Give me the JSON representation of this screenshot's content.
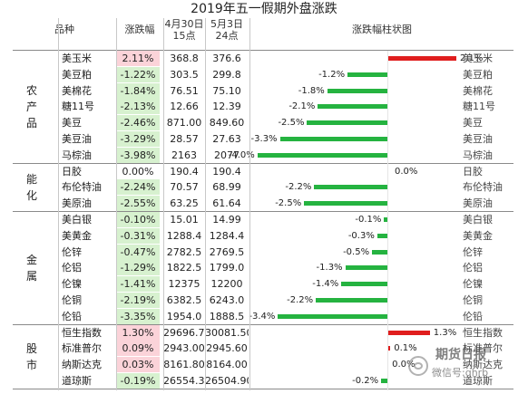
{
  "title": "2019年五一假期外盘涨跌",
  "headers": {
    "category": "品种",
    "change": "涨跌幅",
    "date1_line1": "4月30日",
    "date1_line2": "15点",
    "date2_line1": "5月3日",
    "date2_line2": "24点",
    "chart": "涨跌幅柱状图"
  },
  "groups": [
    {
      "label": "农产品",
      "count": 7
    },
    {
      "label": "能化",
      "count": 3
    },
    {
      "label": "金属",
      "count": 7
    },
    {
      "label": "股市",
      "count": 4
    }
  ],
  "rows": [
    {
      "name": "美玉米",
      "change": "2.11%",
      "v1": "368.8",
      "v2": "376.6",
      "bar_label": "2.1%",
      "value": 2.11
    },
    {
      "name": "美豆粕",
      "change": "-1.22%",
      "v1": "303.5",
      "v2": "299.8",
      "bar_label": "-1.2%",
      "value": -1.22
    },
    {
      "name": "美棉花",
      "change": "-1.84%",
      "v1": "76.51",
      "v2": "75.10",
      "bar_label": "-1.8%",
      "value": -1.84
    },
    {
      "name": "糖11号",
      "change": "-2.13%",
      "v1": "12.66",
      "v2": "12.39",
      "bar_label": "-2.1%",
      "value": -2.13
    },
    {
      "name": "美豆",
      "change": "-2.46%",
      "v1": "871.00",
      "v2": "849.60",
      "bar_label": "-2.5%",
      "value": -2.46
    },
    {
      "name": "美豆油",
      "change": "-3.29%",
      "v1": "28.57",
      "v2": "27.63",
      "bar_label": "-3.3%",
      "value": -3.29
    },
    {
      "name": "马棕油",
      "change": "-3.98%",
      "v1": "2163",
      "v2": "2077",
      "bar_label": "-4.0%",
      "value": -3.98
    },
    {
      "name": "日胶",
      "change": "0.00%",
      "v1": "190.4",
      "v2": "190.4",
      "bar_label": "0.0%",
      "value": 0.0
    },
    {
      "name": "布伦特油",
      "change": "-2.24%",
      "v1": "70.57",
      "v2": "68.99",
      "bar_label": "-2.2%",
      "value": -2.24
    },
    {
      "name": "美原油",
      "change": "-2.55%",
      "v1": "63.25",
      "v2": "61.64",
      "bar_label": "-2.5%",
      "value": -2.55
    },
    {
      "name": "美白银",
      "change": "-0.10%",
      "v1": "15.01",
      "v2": "14.99",
      "bar_label": "-0.1%",
      "value": -0.1
    },
    {
      "name": "美黄金",
      "change": "-0.31%",
      "v1": "1288.4",
      "v2": "1284.4",
      "bar_label": "-0.3%",
      "value": -0.31
    },
    {
      "name": "伦锌",
      "change": "-0.47%",
      "v1": "2782.5",
      "v2": "2769.5",
      "bar_label": "-0.5%",
      "value": -0.47
    },
    {
      "name": "伦铝",
      "change": "-1.29%",
      "v1": "1822.5",
      "v2": "1799.0",
      "bar_label": "-1.3%",
      "value": -1.29
    },
    {
      "name": "伦镍",
      "change": "-1.41%",
      "v1": "12375",
      "v2": "12200",
      "bar_label": "-1.4%",
      "value": -1.41
    },
    {
      "name": "伦铜",
      "change": "-2.19%",
      "v1": "6382.5",
      "v2": "6243.0",
      "bar_label": "-2.2%",
      "value": -2.19
    },
    {
      "name": "伦铅",
      "change": "-3.35%",
      "v1": "1954.0",
      "v2": "1888.5",
      "bar_label": "-3.4%",
      "value": -3.35
    },
    {
      "name": "恒生指数",
      "change": "1.30%",
      "v1": "29696.70",
      "v2": "30081.50",
      "bar_label": "1.3%",
      "value": 1.3
    },
    {
      "name": "标准普尔",
      "change": "0.09%",
      "v1": "2943.00",
      "v2": "2945.60",
      "bar_label": "0.1%",
      "value": 0.09
    },
    {
      "name": "纳斯达克",
      "change": "0.03%",
      "v1": "8161.80",
      "v2": "8164.00",
      "bar_label": "0.0%",
      "value": 0.03
    },
    {
      "name": "道琼斯",
      "change": "-0.19%",
      "v1": "26554.30",
      "v2": "26504.90",
      "bar_label": "-0.2%",
      "value": -0.19
    }
  ],
  "colors": {
    "negative": "#25b340",
    "positive": "#e01e1e",
    "neg_fill": "#d7f1cf",
    "pos_fill": "#fbd3d9"
  },
  "watermark": {
    "brand": "期货日报",
    "sub": "微信号:qhrb",
    "icon": "wechat-icon"
  }
}
